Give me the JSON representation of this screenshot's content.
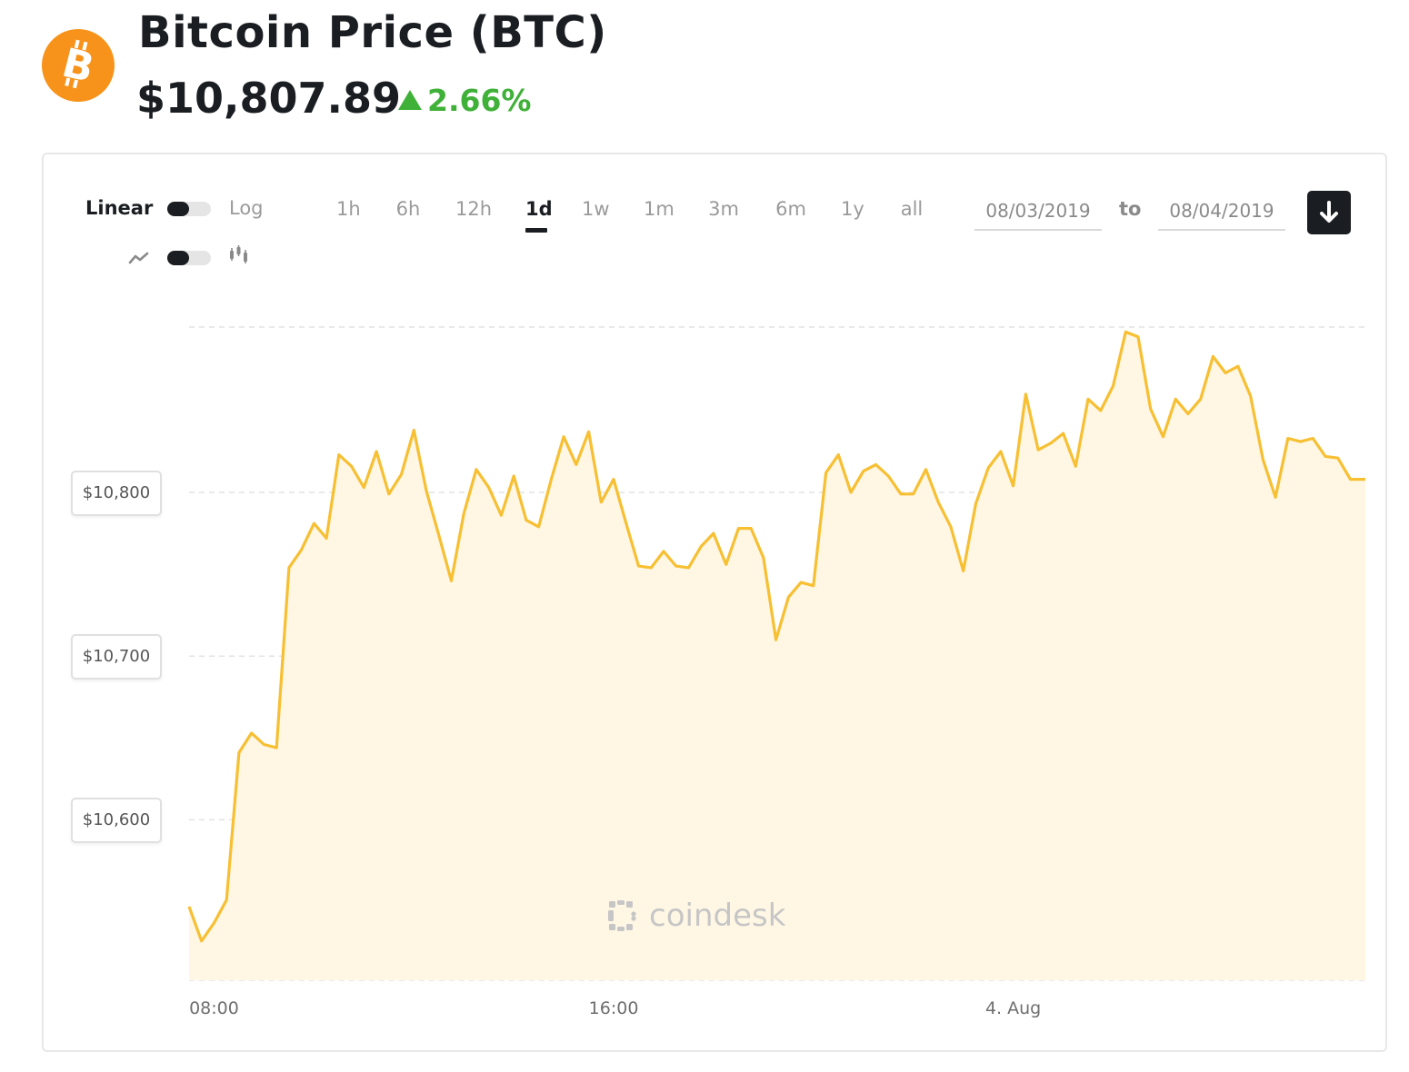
{
  "header": {
    "title": "Bitcoin Price (BTC)",
    "price": "$10,807.89",
    "change": "2.66%",
    "brand_color": "#f7931a",
    "change_color": "#3fb138",
    "logo_icon": "bitcoin-icon"
  },
  "controls": {
    "scale_linear": "Linear",
    "scale_log": "Log",
    "scale_selected": "Linear",
    "chart_type_selected": "line",
    "ranges": [
      "1h",
      "6h",
      "12h",
      "1d",
      "1w",
      "1m",
      "3m",
      "6m",
      "1y",
      "all"
    ],
    "active_range": "1d",
    "date_from": "08/03/2019",
    "date_sep": "to",
    "date_to": "08/04/2019",
    "download_icon": "download-arrow-icon"
  },
  "watermark": "coindesk",
  "chart_data": {
    "type": "area",
    "title": "",
    "xlabel": "",
    "ylabel": "",
    "x_ticks": [
      "08:00",
      "16:00",
      "4. Aug"
    ],
    "x_tick_values": [
      8,
      16,
      24
    ],
    "y_ticks": [
      "$10,600",
      "$10,700",
      "$10,800"
    ],
    "y_tick_values": [
      10600,
      10700,
      10800
    ],
    "xlim": [
      7.5,
      31.05
    ],
    "ylim": [
      10502,
      10901
    ],
    "grid": true,
    "line_color": "#f7bf32",
    "fill_color": "#fff7e4",
    "series": [
      {
        "x": [
          7.5,
          7.75,
          8.0,
          8.25,
          8.5,
          8.75,
          9.0,
          9.25,
          9.5,
          9.75,
          10.0,
          10.25,
          10.5,
          10.75,
          11.0,
          11.25,
          11.5,
          11.75,
          12.0,
          12.25,
          12.5,
          12.75,
          13.0,
          13.25,
          13.5,
          13.75,
          14.0,
          14.25,
          14.5,
          14.75,
          15.0,
          15.25,
          15.5,
          15.75,
          16.0,
          16.25,
          16.5,
          16.75,
          17.0,
          17.25,
          17.5,
          17.75,
          18.0,
          18.25,
          18.5,
          18.75,
          19.0,
          19.25,
          19.5,
          19.75,
          20.0,
          20.25,
          20.5,
          20.75,
          21.0,
          21.25,
          21.5,
          21.75,
          22.0,
          22.25,
          22.5,
          22.75,
          23.0,
          23.25,
          23.5,
          23.75,
          24.0,
          24.25,
          24.5,
          24.75,
          25.0,
          25.25,
          25.5,
          25.75,
          26.0,
          26.25,
          26.5,
          26.75,
          27.0,
          27.25,
          27.5,
          27.75,
          28.0,
          28.25,
          28.5,
          28.75,
          29.0,
          29.25,
          29.5,
          29.75,
          30.0,
          30.25,
          30.5,
          30.75,
          31.0,
          31.05
        ],
        "y": [
          10547,
          10526,
          10537,
          10551,
          10641,
          10653,
          10646,
          10644,
          10754,
          10765,
          10781,
          10772,
          10823,
          10816,
          10803,
          10825,
          10799,
          10811,
          10838,
          10801,
          10774,
          10746,
          10787,
          10814,
          10803,
          10786,
          10810,
          10783,
          10779,
          10808,
          10834,
          10817,
          10837,
          10794,
          10808,
          10781,
          10755,
          10754,
          10764,
          10755,
          10754,
          10767,
          10775,
          10756,
          10778,
          10778,
          10760,
          10710,
          10736,
          10745,
          10743,
          10812,
          10823,
          10800,
          10813,
          10817,
          10810,
          10799,
          10799,
          10814,
          10794,
          10779,
          10752,
          10793,
          10815,
          10825,
          10804,
          10860,
          10826,
          10830,
          10836,
          10816,
          10857,
          10850,
          10865,
          10898,
          10895,
          10851,
          10834,
          10857,
          10848,
          10857,
          10883,
          10873,
          10877,
          10859,
          10820,
          10797,
          10833,
          10831,
          10833,
          10822,
          10821,
          10808,
          10808,
          10808
        ]
      }
    ]
  }
}
